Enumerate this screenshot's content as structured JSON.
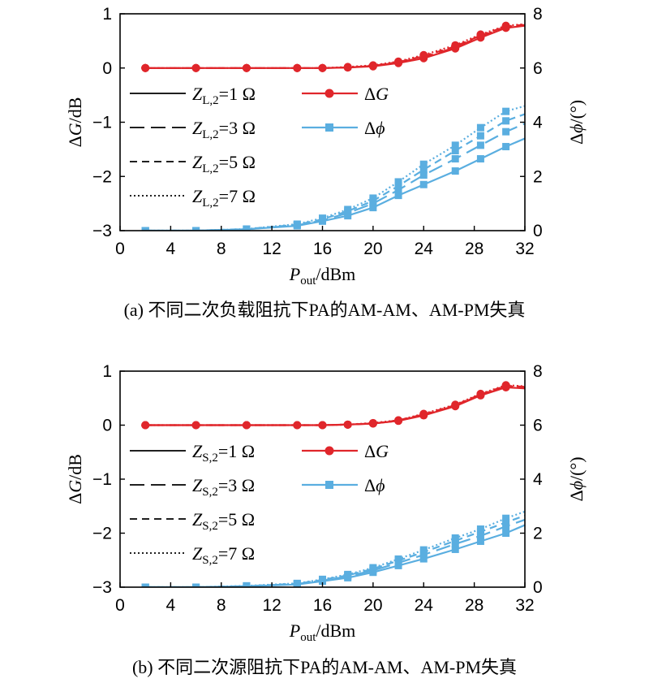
{
  "chart_data": [
    {
      "type": "line",
      "caption": "(a) 不同二次负载阻抗下PA的AM-AM、AM-PM失真",
      "xlabel": {
        "main": "P",
        "sub": "out",
        "unit": "/dBm"
      },
      "ylabel_left": {
        "prefix": "Δ",
        "var": "G",
        "unit": "/dB"
      },
      "ylabel_right": {
        "prefix": "Δ",
        "var": "ϕ",
        "unit": "/(°)"
      },
      "xlim": [
        0,
        32
      ],
      "ylim_left": [
        -3,
        1
      ],
      "ylim_right": [
        0,
        8
      ],
      "x_ticks": [
        "0",
        "4",
        "8",
        "12",
        "16",
        "20",
        "24",
        "28",
        "32"
      ],
      "y_left_ticks": [
        "1",
        "0",
        "−1",
        "−2",
        "−3"
      ],
      "y_right_ticks": [
        "8",
        "6",
        "4",
        "2",
        "0"
      ],
      "legend": {
        "styles": [
          {
            "var": "Z",
            "sub": "L,2",
            "value": "=1 Ω",
            "dash": "solid"
          },
          {
            "var": "Z",
            "sub": "L,2",
            "value": "=3 Ω",
            "dash": "longdash"
          },
          {
            "var": "Z",
            "sub": "L,2",
            "value": "=5 Ω",
            "dash": "dash"
          },
          {
            "var": "Z",
            "sub": "L,2",
            "value": "=7 Ω",
            "dash": "dot"
          }
        ],
        "metrics": [
          {
            "prefix": "Δ",
            "var": "G",
            "marker": "circle",
            "color": "#e0262b"
          },
          {
            "prefix": "Δ",
            "var": "ϕ",
            "marker": "square",
            "color": "#5aaee0"
          }
        ]
      },
      "x": [
        2,
        6,
        10,
        14,
        16,
        18,
        20,
        22,
        24,
        26.5,
        28.5,
        30.5,
        32
      ],
      "gain_series": [
        {
          "name": "Z_L,2=1 Ω",
          "values": [
            0,
            0,
            0,
            0,
            0,
            0.01,
            0.03,
            0.09,
            0.18,
            0.36,
            0.56,
            0.74,
            0.78
          ]
        },
        {
          "name": "Z_L,2=3 Ω",
          "values": [
            0,
            0,
            0,
            0,
            0,
            0.01,
            0.04,
            0.1,
            0.2,
            0.38,
            0.58,
            0.76,
            0.79
          ]
        },
        {
          "name": "Z_L,2=5 Ω",
          "values": [
            0,
            0,
            0,
            0,
            0,
            0.01,
            0.04,
            0.11,
            0.22,
            0.4,
            0.6,
            0.77,
            0.8
          ]
        },
        {
          "name": "Z_L,2=7 Ω",
          "values": [
            0,
            0,
            0,
            0,
            0,
            0.02,
            0.05,
            0.12,
            0.24,
            0.42,
            0.62,
            0.78,
            0.81
          ]
        }
      ],
      "phase_series": [
        {
          "name": "Z_L,2=1 Ω",
          "values": [
            0,
            0,
            0.05,
            0.18,
            0.35,
            0.55,
            0.85,
            1.3,
            1.7,
            2.2,
            2.65,
            3.1,
            3.4
          ]
        },
        {
          "name": "Z_L,2=3 Ω",
          "values": [
            0,
            0,
            0.05,
            0.2,
            0.38,
            0.65,
            1.0,
            1.5,
            2.05,
            2.65,
            3.15,
            3.65,
            3.95
          ]
        },
        {
          "name": "Z_L,2=5 Ω",
          "values": [
            0,
            0,
            0.06,
            0.22,
            0.42,
            0.72,
            1.1,
            1.65,
            2.25,
            2.95,
            3.5,
            4.05,
            4.3
          ]
        },
        {
          "name": "Z_L,2=7 Ω",
          "values": [
            0,
            0,
            0.06,
            0.24,
            0.46,
            0.78,
            1.2,
            1.8,
            2.45,
            3.15,
            3.8,
            4.4,
            4.6
          ]
        }
      ]
    },
    {
      "type": "line",
      "caption": "(b) 不同二次源阻抗下PA的AM-AM、AM-PM失真",
      "xlabel": {
        "main": "P",
        "sub": "out",
        "unit": "/dBm"
      },
      "ylabel_left": {
        "prefix": "Δ",
        "var": "G",
        "unit": "/dB"
      },
      "ylabel_right": {
        "prefix": "Δ",
        "var": "ϕ",
        "unit": "/(°)"
      },
      "xlim": [
        0,
        32
      ],
      "ylim_left": [
        -3,
        1
      ],
      "ylim_right": [
        0,
        8
      ],
      "x_ticks": [
        "0",
        "4",
        "8",
        "12",
        "16",
        "20",
        "24",
        "28",
        "32"
      ],
      "y_left_ticks": [
        "1",
        "0",
        "−1",
        "−2",
        "−3"
      ],
      "y_right_ticks": [
        "8",
        "6",
        "4",
        "2",
        "0"
      ],
      "legend": {
        "styles": [
          {
            "var": "Z",
            "sub": "S,2",
            "value": "=1 Ω",
            "dash": "solid"
          },
          {
            "var": "Z",
            "sub": "S,2",
            "value": "=3 Ω",
            "dash": "longdash"
          },
          {
            "var": "Z",
            "sub": "S,2",
            "value": "=5 Ω",
            "dash": "dash"
          },
          {
            "var": "Z",
            "sub": "S,2",
            "value": "=7 Ω",
            "dash": "dot"
          }
        ],
        "metrics": [
          {
            "prefix": "Δ",
            "var": "G",
            "marker": "circle",
            "color": "#e0262b"
          },
          {
            "prefix": "Δ",
            "var": "ϕ",
            "marker": "square",
            "color": "#5aaee0"
          }
        ]
      },
      "x": [
        2,
        6,
        10,
        14,
        16,
        18,
        20,
        22,
        24,
        26.5,
        28.5,
        30.5,
        32
      ],
      "gain_series": [
        {
          "name": "Z_S,2=1 Ω",
          "values": [
            0,
            0,
            0,
            0,
            0,
            0.01,
            0.03,
            0.08,
            0.18,
            0.35,
            0.55,
            0.7,
            0.68
          ]
        },
        {
          "name": "Z_S,2=3 Ω",
          "values": [
            0,
            0,
            0,
            0,
            0,
            0.01,
            0.03,
            0.08,
            0.19,
            0.36,
            0.56,
            0.72,
            0.7
          ]
        },
        {
          "name": "Z_S,2=5 Ω",
          "values": [
            0,
            0,
            0,
            0,
            0,
            0.01,
            0.03,
            0.09,
            0.2,
            0.37,
            0.57,
            0.73,
            0.71
          ]
        },
        {
          "name": "Z_S,2=7 Ω",
          "values": [
            0,
            0,
            0,
            0,
            0,
            0.01,
            0.04,
            0.09,
            0.21,
            0.38,
            0.58,
            0.74,
            0.72
          ]
        }
      ],
      "phase_series": [
        {
          "name": "Z_S,2=1 Ω",
          "values": [
            0,
            0,
            0.03,
            0.1,
            0.22,
            0.35,
            0.55,
            0.8,
            1.05,
            1.4,
            1.7,
            2.0,
            2.3
          ]
        },
        {
          "name": "Z_S,2=3 Ω",
          "values": [
            0,
            0,
            0.04,
            0.12,
            0.25,
            0.4,
            0.62,
            0.9,
            1.2,
            1.6,
            1.9,
            2.25,
            2.5
          ]
        },
        {
          "name": "Z_S,2=5 Ω",
          "values": [
            0,
            0,
            0.04,
            0.13,
            0.27,
            0.44,
            0.68,
            0.98,
            1.3,
            1.72,
            2.05,
            2.4,
            2.65
          ]
        },
        {
          "name": "Z_S,2=7 Ω",
          "values": [
            0,
            0,
            0.05,
            0.14,
            0.29,
            0.47,
            0.72,
            1.04,
            1.38,
            1.82,
            2.15,
            2.55,
            2.8
          ]
        }
      ]
    }
  ]
}
